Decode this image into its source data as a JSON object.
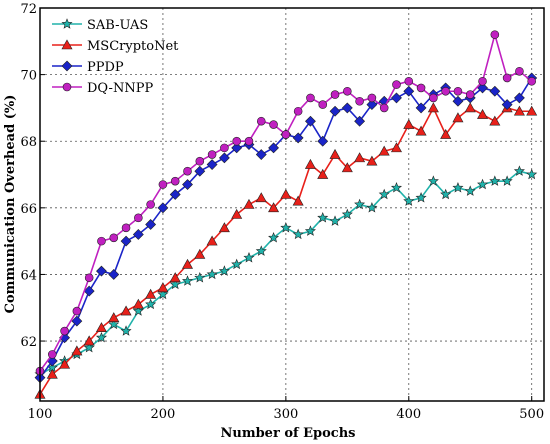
{
  "chart_data": {
    "type": "line",
    "xlabel": "Number of Epochs",
    "ylabel": "Communication Overhead (%)",
    "xlim": [
      100,
      510
    ],
    "ylim": [
      60.2,
      72
    ],
    "xticks": [
      100,
      200,
      300,
      400,
      500
    ],
    "yticks": [
      62,
      64,
      66,
      68,
      70,
      72
    ],
    "grid": true,
    "legend_position": "top-left",
    "x": [
      100,
      110,
      120,
      130,
      140,
      150,
      160,
      170,
      180,
      190,
      200,
      210,
      220,
      230,
      240,
      250,
      260,
      270,
      280,
      290,
      300,
      310,
      320,
      330,
      340,
      350,
      360,
      370,
      380,
      390,
      400,
      410,
      420,
      430,
      440,
      450,
      460,
      470,
      480,
      490,
      500
    ],
    "series": [
      {
        "name": "SAB-UAS",
        "color": "#20b2aa",
        "marker": "star",
        "values": [
          61.0,
          61.2,
          61.4,
          61.6,
          61.8,
          62.1,
          62.5,
          62.3,
          62.9,
          63.1,
          63.4,
          63.7,
          63.8,
          63.9,
          64.0,
          64.1,
          64.3,
          64.5,
          64.7,
          65.1,
          65.4,
          65.2,
          65.3,
          65.7,
          65.6,
          65.8,
          66.1,
          66.0,
          66.4,
          66.6,
          66.2,
          66.3,
          66.8,
          66.4,
          66.6,
          66.5,
          66.7,
          66.8,
          66.8,
          67.1,
          67.0
        ]
      },
      {
        "name": "MSCryptoNet",
        "color": "#e8201a",
        "marker": "triangle",
        "values": [
          60.4,
          61.0,
          61.3,
          61.7,
          62.0,
          62.4,
          62.7,
          62.9,
          63.1,
          63.4,
          63.6,
          63.9,
          64.3,
          64.6,
          65.0,
          65.4,
          65.8,
          66.1,
          66.3,
          66.0,
          66.4,
          66.2,
          67.3,
          67.0,
          67.6,
          67.2,
          67.5,
          67.4,
          67.7,
          67.8,
          68.5,
          68.3,
          69.0,
          68.2,
          68.7,
          69.0,
          68.8,
          68.6,
          69.0,
          68.9,
          68.9
        ]
      },
      {
        "name": "PPDP",
        "color": "#1a24c8",
        "marker": "diamond",
        "values": [
          60.9,
          61.4,
          62.1,
          62.6,
          63.5,
          64.1,
          64.0,
          65.0,
          65.2,
          65.5,
          66.0,
          66.4,
          66.7,
          67.1,
          67.3,
          67.5,
          67.8,
          67.9,
          67.6,
          67.8,
          68.2,
          68.1,
          68.6,
          68.0,
          68.9,
          69.0,
          68.6,
          69.1,
          69.2,
          69.3,
          69.5,
          69.0,
          69.4,
          69.6,
          69.2,
          69.3,
          69.6,
          69.5,
          69.1,
          69.3,
          69.9
        ]
      },
      {
        "name": "DQ-NNPP",
        "color": "#c020c0",
        "marker": "circle",
        "values": [
          61.1,
          61.6,
          62.3,
          62.9,
          63.9,
          65.0,
          65.1,
          65.4,
          65.7,
          66.1,
          66.7,
          66.8,
          67.1,
          67.4,
          67.6,
          67.8,
          68.0,
          68.0,
          68.6,
          68.5,
          68.2,
          68.9,
          69.3,
          69.1,
          69.4,
          69.5,
          69.2,
          69.3,
          69.0,
          69.7,
          69.8,
          69.6,
          69.3,
          69.5,
          69.5,
          69.4,
          69.8,
          71.2,
          69.9,
          70.1,
          69.8
        ]
      }
    ]
  }
}
